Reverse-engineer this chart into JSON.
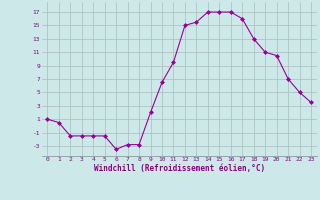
{
  "x": [
    0,
    1,
    2,
    3,
    4,
    5,
    6,
    7,
    8,
    9,
    10,
    11,
    12,
    13,
    14,
    15,
    16,
    17,
    18,
    19,
    20,
    21,
    22,
    23
  ],
  "y": [
    1,
    0.5,
    -1.5,
    -1.5,
    -1.5,
    -1.5,
    -3.5,
    -2.8,
    -2.8,
    2,
    6.5,
    9.5,
    15,
    15.5,
    17,
    17,
    17,
    16,
    13,
    11,
    10.5,
    7,
    5,
    3.5
  ],
  "line_color": "#990099",
  "marker": "D",
  "marker_size": 2,
  "bg_color": "#cce8e8",
  "grid_color": "#aabbbb",
  "xlabel": "Windchill (Refroidissement éolien,°C)",
  "xlabel_color": "#880088",
  "yticks": [
    -3,
    -1,
    1,
    3,
    5,
    7,
    9,
    11,
    13,
    15,
    17
  ],
  "ylim": [
    -4.5,
    18.5
  ],
  "xlim": [
    -0.5,
    23.5
  ],
  "xtick_labels": [
    "0",
    "1",
    "2",
    "3",
    "4",
    "5",
    "6",
    "7",
    "8",
    "9",
    "10",
    "11",
    "12",
    "13",
    "14",
    "15",
    "16",
    "17",
    "18",
    "19",
    "20",
    "21",
    "22",
    "23"
  ]
}
